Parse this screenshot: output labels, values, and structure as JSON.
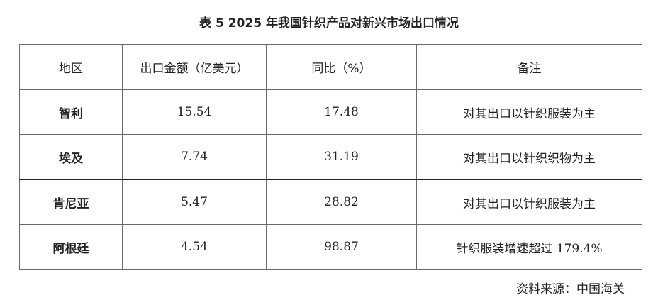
{
  "title": "表 5   2025 年我国针织产品对新兴市场出口情况",
  "headers": [
    "地区",
    "出口金额（亿美元）",
    "同比（%）",
    "备注"
  ],
  "rows": [
    {
      "region": "智利",
      "amount": "15.54",
      "yoy": "17.48",
      "note": "对其出口以针织服装为主"
    },
    {
      "region": "埃及",
      "amount": "7.74",
      "yoy": "31.19",
      "note": "对其出口以针织织物为主"
    },
    {
      "region": "肯尼亚",
      "amount": "5.47",
      "yoy": "28.82",
      "note": "对其出口以针织服装为主"
    },
    {
      "region": "阿根廷",
      "amount": "4.54",
      "yoy": "98.87",
      "note": "针织服装增速超过 179.4%"
    }
  ],
  "source": "资料来源：中国海关"
}
